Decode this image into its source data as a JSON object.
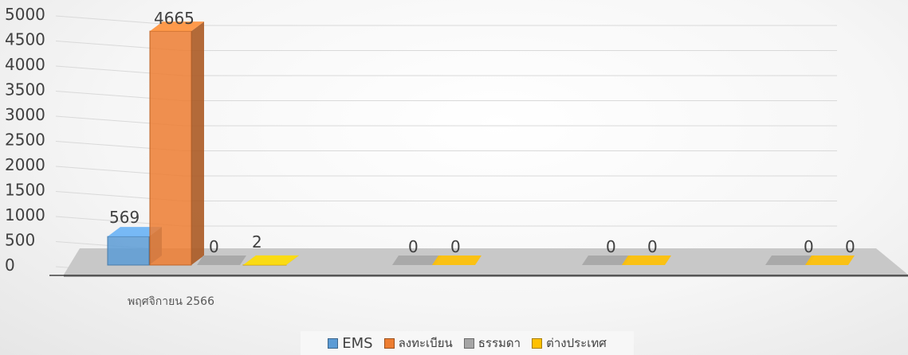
{
  "chart_data": {
    "type": "bar",
    "style": "3d-column",
    "title": "",
    "xlabel": "",
    "ylabel": "",
    "ylim": [
      0,
      5000
    ],
    "yticks": [
      "0",
      "500",
      "1000",
      "1500",
      "2000",
      "2500",
      "3000",
      "3500",
      "4000",
      "4500",
      "5000"
    ],
    "categories": [
      "พฤศจิกายน 2566",
      "",
      "",
      ""
    ],
    "series": [
      {
        "name": "EMS",
        "values": [
          569,
          null,
          null,
          null
        ],
        "color": "#5b9bd5"
      },
      {
        "name": "ลงทะเบียน",
        "values": [
          4665,
          null,
          null,
          null
        ],
        "color": "#ed7d31"
      },
      {
        "name": "ธรรมดา",
        "values": [
          0,
          0,
          0,
          0
        ],
        "color": "#a5a5a5"
      },
      {
        "name": "ต่างประเทศ",
        "values": [
          2,
          0,
          0,
          0
        ],
        "color": "#ffc000"
      }
    ],
    "data_labels": [
      [
        "569",
        "4665",
        "0",
        "2"
      ],
      [
        "",
        "",
        "0",
        "0"
      ],
      [
        "",
        "",
        "0",
        "0"
      ],
      [
        "",
        "",
        "0",
        "0"
      ]
    ],
    "grid": true,
    "legend_position": "bottom"
  }
}
